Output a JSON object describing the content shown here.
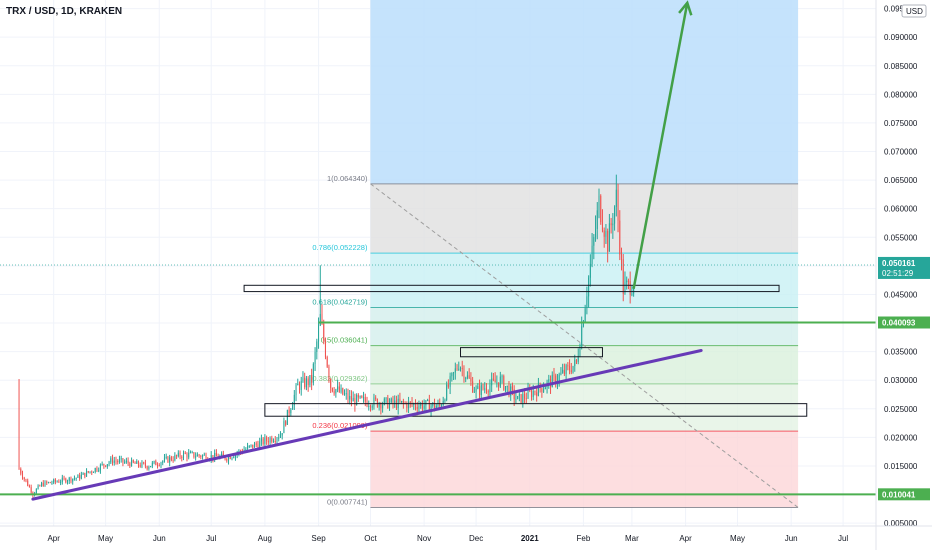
{
  "header": {
    "symbol_title": "TRX / USD, 1D, KRAKEN"
  },
  "price_axis": {
    "currency_badge": "USD",
    "tick_labels": [
      "0.095",
      "0.090000",
      "0.085000",
      "0.080000",
      "0.075000",
      "0.070000",
      "0.065000",
      "0.060000",
      "0.055000",
      "0.050000",
      "0.045000",
      "0.040000",
      "0.035000",
      "0.030000",
      "0.025000",
      "0.020000",
      "0.015000",
      "0.010000",
      "0.005000"
    ],
    "last_price": "0.050161",
    "countdown": "02:51:29",
    "level_tags": [
      {
        "value": 0.040093,
        "label": "0.040093"
      },
      {
        "value": 0.010041,
        "label": "0.010041"
      }
    ]
  },
  "time_axis": {
    "tick_labels": [
      "Apr",
      "May",
      "Jun",
      "Jul",
      "Aug",
      "Sep",
      "Oct",
      "Nov",
      "Dec",
      "2021",
      "Feb",
      "Mar",
      "Apr",
      "May",
      "Jun",
      "Jul"
    ]
  },
  "fibonacci": {
    "levels": [
      {
        "ratio": 1,
        "value": 0.06434,
        "label": "1(0.064340)",
        "color": "#787b86"
      },
      {
        "ratio": 0.786,
        "value": 0.052228,
        "label": "0.786(0.052228)",
        "color": "#26c6da"
      },
      {
        "ratio": 0.618,
        "value": 0.042719,
        "label": "0.618(0.042719)",
        "color": "#26a69a"
      },
      {
        "ratio": 0.5,
        "value": 0.036041,
        "label": "0.5(0.036041)",
        "color": "#4caf50"
      },
      {
        "ratio": 0.382,
        "value": 0.029362,
        "label": "0.382(0.029362)",
        "color": "#81c784"
      },
      {
        "ratio": 0.236,
        "value": 0.021099,
        "label": "0.236(0.021099)",
        "color": "#f23645"
      },
      {
        "ratio": 0,
        "value": 0.007741,
        "label": "0(0.007741)",
        "color": "#787b86"
      }
    ]
  },
  "colors": {
    "up": "#26a69a",
    "down": "#ef5350",
    "trendline": "#673ab7",
    "level_line": "#4caf50",
    "arrow": "#43a047",
    "projection": "#90caf9"
  },
  "chart_data": {
    "type": "candlestick",
    "title": "TRX / USD, 1D, KRAKEN",
    "ylim": [
      0.0045,
      0.0965
    ],
    "xlim": [
      "2020-03-01",
      "2021-07-20"
    ],
    "ohlc_anchor_closes": [
      [
        "2020-03-12",
        0.0145
      ],
      [
        "2020-03-15",
        0.0128
      ],
      [
        "2020-03-20",
        0.0102
      ],
      [
        "2020-03-25",
        0.0118
      ],
      [
        "2020-04-15",
        0.013
      ],
      [
        "2020-05-05",
        0.016
      ],
      [
        "2020-05-25",
        0.015
      ],
      [
        "2020-06-15",
        0.017
      ],
      [
        "2020-07-10",
        0.0165
      ],
      [
        "2020-07-25",
        0.0185
      ],
      [
        "2020-08-10",
        0.0205
      ],
      [
        "2020-08-20",
        0.029
      ],
      [
        "2020-08-28",
        0.03
      ],
      [
        "2020-09-02",
        0.041
      ],
      [
        "2020-09-08",
        0.029
      ],
      [
        "2020-09-20",
        0.0265
      ],
      [
        "2020-10-10",
        0.026
      ],
      [
        "2020-11-10",
        0.0255
      ],
      [
        "2020-11-21",
        0.033
      ],
      [
        "2020-12-01",
        0.028
      ],
      [
        "2020-12-15",
        0.03
      ],
      [
        "2020-12-25",
        0.0265
      ],
      [
        "2021-01-15",
        0.03
      ],
      [
        "2021-01-28",
        0.033
      ],
      [
        "2021-02-05",
        0.05
      ],
      [
        "2021-02-10",
        0.061
      ],
      [
        "2021-02-15",
        0.054
      ],
      [
        "2021-02-20",
        0.062
      ],
      [
        "2021-02-24",
        0.046
      ],
      [
        "2021-03-02",
        0.047
      ]
    ],
    "spike_high": {
      "date": "2020-03-12",
      "high": 0.0302
    },
    "sep_high": {
      "date": "2020-09-02",
      "high": 0.0501
    },
    "feb_high": {
      "date": "2021-02-21",
      "high": 0.06434
    },
    "trendline": {
      "from": [
        "2020-03-20",
        0.0092
      ],
      "to": [
        "2021-04-10",
        0.0352
      ]
    },
    "support_zones": [
      {
        "from": "2020-08-01",
        "to": "2021-06-10",
        "low": 0.0237,
        "high": 0.0259
      },
      {
        "from": "2020-11-22",
        "to": "2021-02-12",
        "low": 0.0341,
        "high": 0.0357
      },
      {
        "from": "2020-07-20",
        "to": "2021-05-25",
        "low": 0.0455,
        "high": 0.0466
      }
    ],
    "horizontal_levels": [
      {
        "value": 0.040093,
        "from": "2020-09-01"
      },
      {
        "value": 0.010041,
        "from": "2020-02-25"
      }
    ],
    "projection_arrow": {
      "from": [
        "2021-03-02",
        0.046
      ],
      "to": [
        "2021-04-02",
        0.096
      ]
    },
    "fib_range": {
      "from": "2020-10-01",
      "to": "2021-06-05"
    }
  }
}
